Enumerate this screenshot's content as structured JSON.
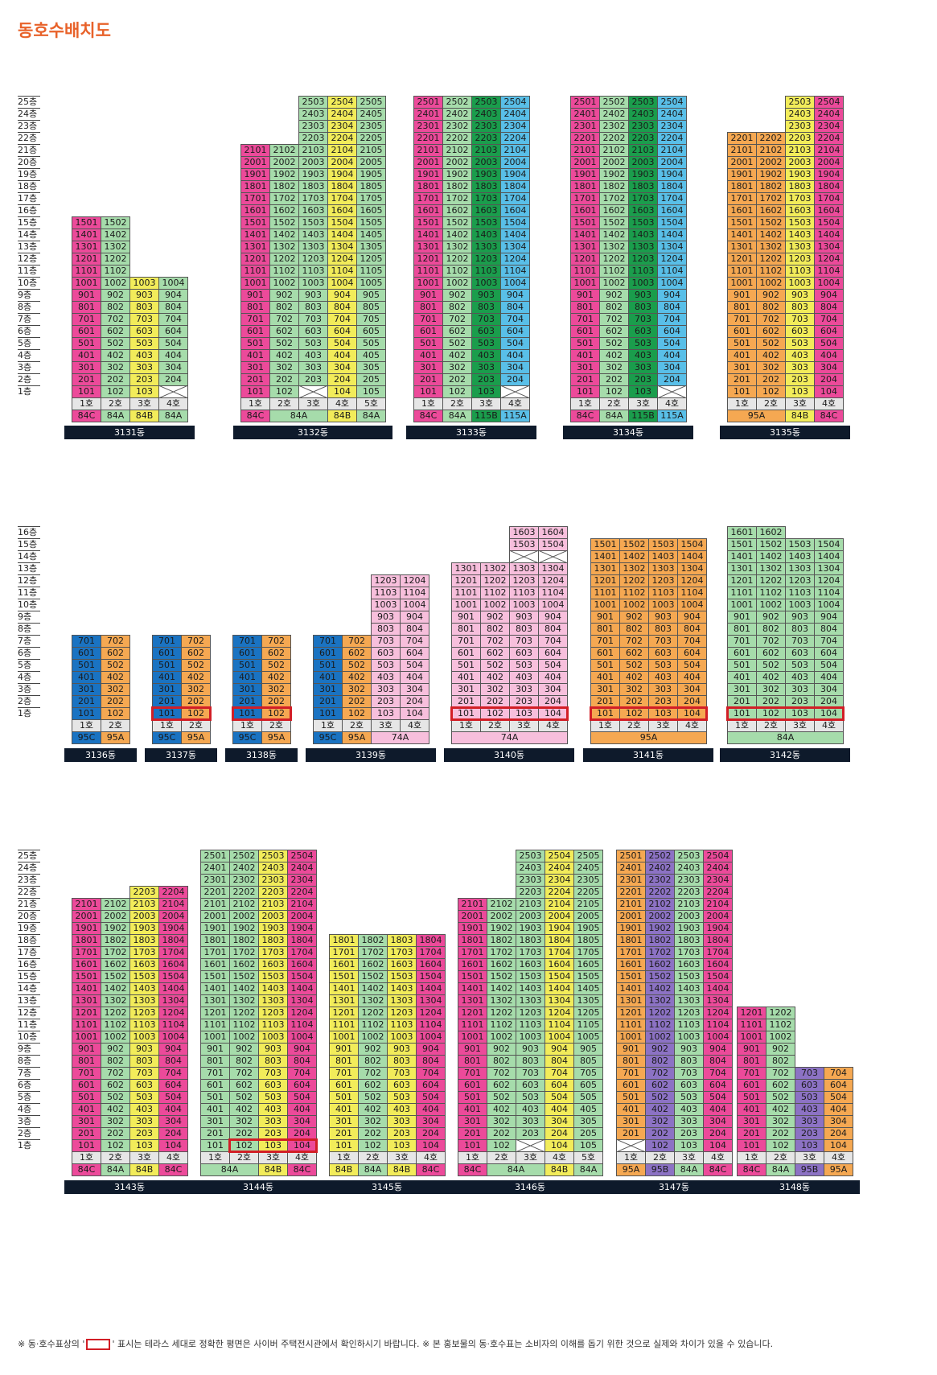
{
  "title": "동호수배치도",
  "footnote": {
    "prefix": "※ 동·호수표상의 '",
    "suffix": "' 표시는 테라스 세대로 정확한 평면은 사이버 주택전시관에서 확인하시기 바랍니다. ※ 본 홍보물의 동·호수표는 소비자의 이해를 돕기 위한 것으로 실제와 차이가 있을 수 있습니다."
  },
  "colors": {
    "84C": "#ec4a9a",
    "84A": "#a6dcab",
    "84B": "#f2ec5a",
    "115B": "#1a9d4c",
    "115A": "#59bfe8",
    "95A": "#f5a852",
    "95C": "#1a73c2",
    "74A": "#f7bfdc",
    "95B": "#8c72c4"
  },
  "rows": [
    {
      "maxFloor": 25,
      "blocks": [
        {
          "name": "3131동",
          "lines": [
            {
              "t": "84C",
              "top": 15
            },
            {
              "t": "84A",
              "top": 15
            },
            {
              "t": "84B",
              "top": 10
            },
            {
              "t": "84A",
              "top": 10,
              "skip": [
                1
              ]
            }
          ],
          "types": [
            {
              "label": "84C",
              "span": 1
            },
            {
              "label": "84A",
              "span": 1
            },
            {
              "label": "84B",
              "span": 1
            },
            {
              "label": "84A",
              "span": 1
            }
          ],
          "terrace": []
        },
        {
          "name": "3132동",
          "lines": [
            {
              "t": "84C",
              "top": 21
            },
            {
              "t": "84A",
              "top": 21
            },
            {
              "t": "84A",
              "top": 25,
              "skip": [
                1
              ]
            },
            {
              "t": "84B",
              "top": 25
            },
            {
              "t": "84A",
              "top": 25
            }
          ],
          "types": [
            {
              "label": "84C",
              "span": 1
            },
            {
              "label": "84A",
              "span": 2
            },
            {
              "label": "84B",
              "span": 1
            },
            {
              "label": "84A",
              "span": 1
            }
          ],
          "terrace": []
        },
        {
          "name": "3133동",
          "lines": [
            {
              "t": "84C",
              "top": 25
            },
            {
              "t": "84A",
              "top": 25
            },
            {
              "t": "115B",
              "top": 25
            },
            {
              "t": "115A",
              "top": 25,
              "skip": [
                1
              ]
            }
          ],
          "types": [
            {
              "label": "84C",
              "span": 1
            },
            {
              "label": "84A",
              "span": 1
            },
            {
              "label": "115B",
              "span": 1
            },
            {
              "label": "115A",
              "span": 1
            }
          ],
          "terrace": []
        },
        {
          "name": "3134동",
          "lines": [
            {
              "t": "84C",
              "top": 25
            },
            {
              "t": "84A",
              "top": 25
            },
            {
              "t": "115B",
              "top": 25
            },
            {
              "t": "115A",
              "top": 25,
              "skip": [
                1
              ]
            }
          ],
          "types": [
            {
              "label": "84C",
              "span": 1
            },
            {
              "label": "84A",
              "span": 1
            },
            {
              "label": "115B",
              "span": 1
            },
            {
              "label": "115A",
              "span": 1
            }
          ],
          "terrace": []
        },
        {
          "name": "3135동",
          "lines": [
            {
              "t": "95A",
              "top": 22
            },
            {
              "t": "95A",
              "top": 22
            },
            {
              "t": "84B",
              "top": 25
            },
            {
              "t": "84C",
              "top": 25
            }
          ],
          "types": [
            {
              "label": "95A",
              "span": 2
            },
            {
              "label": "84B",
              "span": 1
            },
            {
              "label": "84C",
              "span": 1
            }
          ],
          "terrace": []
        }
      ]
    },
    {
      "maxFloor": 16,
      "blocks": [
        {
          "name": "3136동",
          "lines": [
            {
              "t": "95C",
              "top": 7
            },
            {
              "t": "95A",
              "top": 7
            }
          ],
          "types": [
            {
              "label": "95C",
              "span": 1
            },
            {
              "label": "95A",
              "span": 1
            }
          ],
          "terrace": []
        },
        {
          "name": "3137동",
          "lines": [
            {
              "t": "95C",
              "top": 7
            },
            {
              "t": "95A",
              "top": 7
            }
          ],
          "types": [
            {
              "label": "95C",
              "span": 1
            },
            {
              "label": "95A",
              "span": 1
            }
          ],
          "terrace": [
            {
              "floor": 1,
              "from": 0,
              "to": 1
            }
          ]
        },
        {
          "name": "3138동",
          "lines": [
            {
              "t": "95C",
              "top": 7
            },
            {
              "t": "95A",
              "top": 7
            }
          ],
          "types": [
            {
              "label": "95C",
              "span": 1
            },
            {
              "label": "95A",
              "span": 1
            }
          ],
          "terrace": [
            {
              "floor": 1,
              "from": 0,
              "to": 1
            }
          ]
        },
        {
          "name": "3139동",
          "lines": [
            {
              "t": "95C",
              "top": 7
            },
            {
              "t": "95A",
              "top": 7
            },
            {
              "t": "74A",
              "top": 12
            },
            {
              "t": "74A",
              "top": 12
            }
          ],
          "types": [
            {
              "label": "95C",
              "span": 1
            },
            {
              "label": "95A",
              "span": 1
            },
            {
              "label": "74A",
              "span": 2
            }
          ],
          "terrace": []
        },
        {
          "name": "3140동",
          "lines": [
            {
              "t": "74A",
              "top": 13
            },
            {
              "t": "74A",
              "top": 13
            },
            {
              "t": "74A",
              "top": 16,
              "skip": [
                14
              ]
            },
            {
              "t": "74A",
              "top": 16,
              "skip": [
                14
              ]
            }
          ],
          "types": [
            {
              "label": "74A",
              "span": 4
            }
          ],
          "terrace": [
            {
              "floor": 1,
              "from": 0,
              "to": 3
            }
          ]
        },
        {
          "name": "3141동",
          "lines": [
            {
              "t": "95A",
              "top": 15
            },
            {
              "t": "95A",
              "top": 15
            },
            {
              "t": "95A",
              "top": 15
            },
            {
              "t": "95A",
              "top": 15
            }
          ],
          "types": [
            {
              "label": "95A",
              "span": 4
            }
          ],
          "terrace": [
            {
              "floor": 1,
              "from": 0,
              "to": 3
            }
          ]
        },
        {
          "name": "3142동",
          "lines": [
            {
              "t": "84A",
              "top": 16
            },
            {
              "t": "84A",
              "top": 16
            },
            {
              "t": "84A",
              "top": 15
            },
            {
              "t": "84A",
              "top": 15
            }
          ],
          "types": [
            {
              "label": "84A",
              "span": 4
            }
          ],
          "terrace": [
            {
              "floor": 1,
              "from": 0,
              "to": 3
            }
          ]
        }
      ]
    },
    {
      "maxFloor": 25,
      "blocks": [
        {
          "name": "3143동",
          "lines": [
            {
              "t": "84C",
              "top": 21
            },
            {
              "t": "84A",
              "top": 21
            },
            {
              "t": "84B",
              "top": 22
            },
            {
              "t": "84C",
              "top": 22
            }
          ],
          "types": [
            {
              "label": "84C",
              "span": 1
            },
            {
              "label": "84A",
              "span": 1
            },
            {
              "label": "84B",
              "span": 1
            },
            {
              "label": "84C",
              "span": 1
            }
          ],
          "terrace": []
        },
        {
          "name": "3144동",
          "lines": [
            {
              "t": "84A",
              "top": 25
            },
            {
              "t": "84A",
              "top": 25
            },
            {
              "t": "84B",
              "top": 25
            },
            {
              "t": "84C",
              "top": 25
            }
          ],
          "types": [
            {
              "label": "84A",
              "span": 2
            },
            {
              "label": "84B",
              "span": 1
            },
            {
              "label": "84C",
              "span": 1
            }
          ],
          "terrace": [
            {
              "floor": 1,
              "from": 1,
              "to": 3
            }
          ]
        },
        {
          "name": "3145동",
          "lines": [
            {
              "t": "84B",
              "top": 18
            },
            {
              "t": "84A",
              "top": 18
            },
            {
              "t": "84B",
              "top": 18
            },
            {
              "t": "84C",
              "top": 18
            }
          ],
          "types": [
            {
              "label": "84B",
              "span": 1
            },
            {
              "label": "84A",
              "span": 1
            },
            {
              "label": "84B",
              "span": 1
            },
            {
              "label": "84C",
              "span": 1
            }
          ],
          "terrace": []
        },
        {
          "name": "3146동",
          "lines": [
            {
              "t": "84C",
              "top": 21
            },
            {
              "t": "84A",
              "top": 21
            },
            {
              "t": "84A",
              "top": 25,
              "skip": [
                1
              ]
            },
            {
              "t": "84B",
              "top": 25
            },
            {
              "t": "84A",
              "top": 25
            }
          ],
          "types": [
            {
              "label": "84C",
              "span": 1
            },
            {
              "label": "84A",
              "span": 2
            },
            {
              "label": "84B",
              "span": 1
            },
            {
              "label": "84A",
              "span": 1
            }
          ],
          "terrace": []
        },
        {
          "name": "3147동",
          "lines": [
            {
              "t": "95A",
              "top": 25,
              "skip": [
                1
              ]
            },
            {
              "t": "95B",
              "top": 25
            },
            {
              "t": "84A",
              "top": 25
            },
            {
              "t": "84C",
              "top": 25
            }
          ],
          "types": [
            {
              "label": "95A",
              "span": 1
            },
            {
              "label": "95B",
              "span": 1
            },
            {
              "label": "84A",
              "span": 1
            },
            {
              "label": "84C",
              "span": 1
            }
          ],
          "terrace": []
        },
        {
          "name": "3148동",
          "lines": [
            {
              "t": "84C",
              "top": 12
            },
            {
              "t": "84A",
              "top": 12
            },
            {
              "t": "95B",
              "top": 7
            },
            {
              "t": "95A",
              "top": 7
            }
          ],
          "types": [
            {
              "label": "84C",
              "span": 1
            },
            {
              "label": "84A",
              "span": 1
            },
            {
              "label": "95B",
              "span": 1
            },
            {
              "label": "95A",
              "span": 1
            }
          ],
          "terrace": []
        }
      ]
    }
  ]
}
